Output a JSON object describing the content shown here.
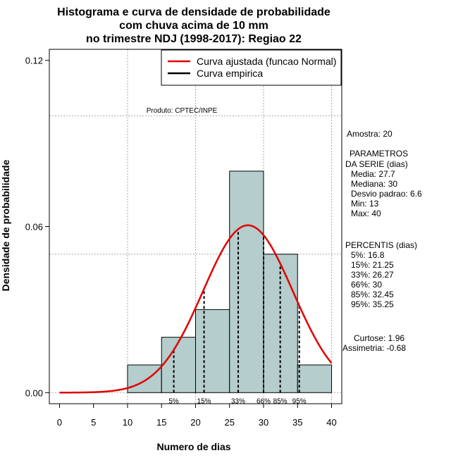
{
  "chart_data": {
    "type": "bar",
    "title_lines": [
      "Histograma e curva de densidade de probabilidade",
      "com chuva acima de 10 mm",
      "no trimestre NDJ (1998-2017): Regiao 22"
    ],
    "xlabel": "Numero de dias",
    "ylabel": "Densidade de probabilidade",
    "xlim": [
      -1.5,
      41.5
    ],
    "ylim": [
      -0.004,
      0.124
    ],
    "x_ticks": [
      "0",
      "5",
      "10",
      "15",
      "20",
      "25",
      "30",
      "35",
      "40"
    ],
    "x_tick_values": [
      0,
      5,
      10,
      15,
      20,
      25,
      30,
      35,
      40
    ],
    "y_ticks": [
      "0.00",
      "0.06",
      "0.12"
    ],
    "y_tick_values": [
      0.0,
      0.06,
      0.12
    ],
    "grid": true,
    "bins": [
      {
        "x0": 10,
        "x1": 15,
        "value": 0.01
      },
      {
        "x0": 15,
        "x1": 20,
        "value": 0.02
      },
      {
        "x0": 20,
        "x1": 25,
        "value": 0.03
      },
      {
        "x0": 25,
        "x1": 30,
        "value": 0.08
      },
      {
        "x0": 30,
        "x1": 35,
        "value": 0.05
      },
      {
        "x0": 35,
        "x1": 40,
        "value": 0.01
      }
    ],
    "bar_color": "#b5cdcd",
    "density_curve": {
      "name": "Curva ajustada (funcao Normal)",
      "color": "#e00000",
      "mean": 27.7,
      "sd": 6.6,
      "x_range": [
        0,
        40
      ]
    },
    "empirical_curve": {
      "name": "Curva empirica",
      "color": "#000000"
    },
    "percentile_lines": [
      {
        "label": "5%",
        "x": 16.8
      },
      {
        "label": "15%",
        "x": 21.25
      },
      {
        "label": "33%",
        "x": 26.27
      },
      {
        "label": "66%",
        "x": 30
      },
      {
        "label": "85%",
        "x": 32.45
      },
      {
        "label": "95%",
        "x": 35.25
      }
    ],
    "legend_position": "top-right",
    "product_label": "Produto: CPTEC/INPE",
    "sidebar": {
      "sample": "Amostra: 20",
      "params_header": [
        "PARAMETROS",
        "DA SERIE (dias)"
      ],
      "params": [
        "Media: 27.7",
        "Mediana: 30",
        "Desvio padrao: 6.6",
        "Min: 13",
        "Max: 40"
      ],
      "percentiles_header": "PERCENTIS (dias)",
      "percentiles": [
        "5%: 16.8",
        "15%: 21.25",
        "33%: 26.27",
        "66%: 30",
        "85%: 32.45",
        "95%: 35.25"
      ],
      "kurtosis": "Curtose: 1.96",
      "skewness": "Assimetria: -0.68"
    }
  }
}
